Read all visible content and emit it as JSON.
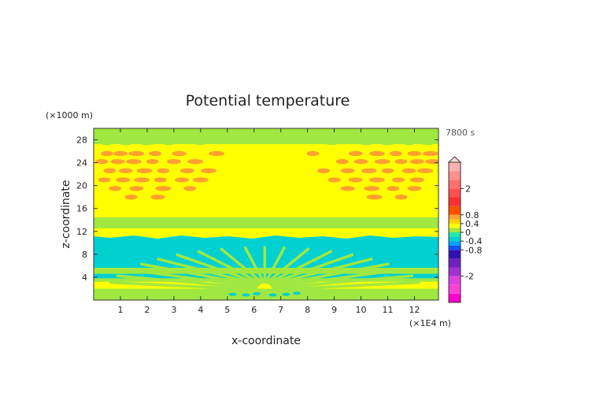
{
  "chart_data": {
    "type": "heatmap",
    "title": "Potential temperature",
    "time_label": "7800 s",
    "xlabel": "x-coordinate",
    "ylabel": "z-coordinate",
    "x_unit": "(×1E4 m)",
    "y_unit": "(×1000 m)",
    "xlim": [
      0,
      12.9
    ],
    "ylim": [
      0,
      30
    ],
    "x_ticks": [
      1,
      2,
      3,
      4,
      5,
      6,
      7,
      8,
      9,
      10,
      11,
      12
    ],
    "y_ticks": [
      4,
      8,
      12,
      16,
      20,
      24,
      28
    ],
    "grid": false,
    "colorbar": {
      "levels": [
        -3.2,
        -2.8,
        -2.4,
        -2,
        -1.6,
        -1.2,
        -0.8,
        -0.6,
        -0.4,
        -0.2,
        0,
        0.2,
        0.4,
        0.6,
        0.8,
        1.2,
        1.6,
        2,
        2.4,
        2.8,
        3.2
      ],
      "colors": [
        "#ff00c8",
        "#ff40d8",
        "#e040e0",
        "#a030d0",
        "#7020c0",
        "#3010b0",
        "#1050ff",
        "#00a0ff",
        "#00d0d0",
        "#20e8b0",
        "#a0e840",
        "#ffff00",
        "#ffd000",
        "#ffa030",
        "#ff5000",
        "#ff3030",
        "#ff5050",
        "#ff7070",
        "#ff9090",
        "#ffb0b0",
        "#ffc8c8"
      ],
      "tick_labels": [
        "2",
        "0.8",
        "0.4",
        "0",
        "-0.4",
        "-0.8",
        "-2"
      ],
      "tick_values": [
        2,
        0.8,
        0.4,
        0,
        -0.4,
        -0.8,
        -2
      ]
    },
    "field_description_values": {
      "background": 0.1,
      "top_band": -0.1,
      "stable_layer_z": [
        11,
        14.5
      ],
      "stable_layer_value": -0.3,
      "low_layer_value": -0.3,
      "upper_cells_value": 0.35
    }
  }
}
